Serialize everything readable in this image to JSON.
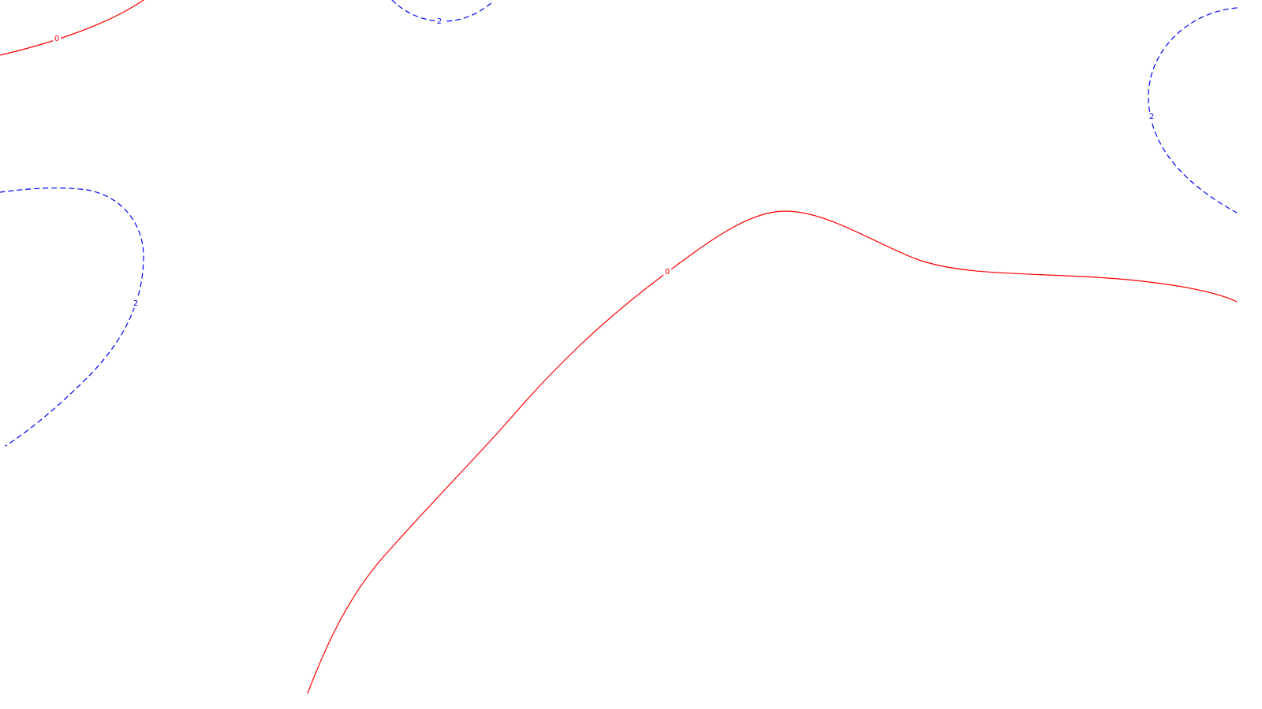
{
  "chart_data": {
    "type": "contour",
    "title": "",
    "xlabel": "",
    "ylabel": "",
    "grid": false,
    "legend": false,
    "levels": [
      {
        "level": "0",
        "color": "#ff0000",
        "style": "solid"
      },
      {
        "level": "2",
        "color": "#0000ff",
        "style": "dashed"
      }
    ],
    "contours": [
      {
        "id": "contour-zero-main",
        "level": "0",
        "label": "0"
      },
      {
        "id": "contour-zero-topleft",
        "level": "0",
        "label": "0"
      },
      {
        "id": "contour-two-left",
        "level": "2",
        "label": "2"
      },
      {
        "id": "contour-two-top",
        "level": "2",
        "label": "2"
      },
      {
        "id": "contour-two-right",
        "level": "2",
        "label": "2"
      }
    ]
  }
}
